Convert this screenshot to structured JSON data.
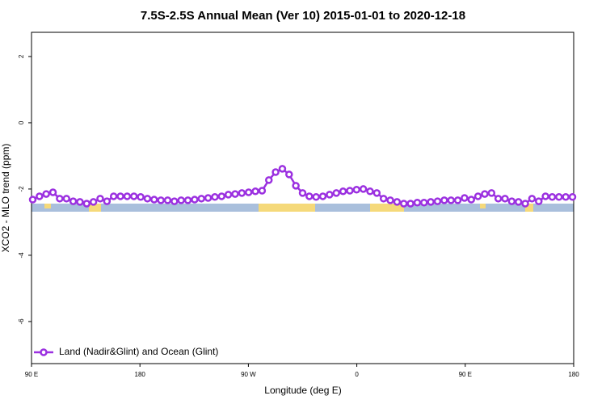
{
  "chart_data": {
    "type": "line",
    "title": "7.5S-2.5S Annual Mean (Ver 10)   2015-01-01 to 2020-12-18",
    "x_label": "Longitude (deg E)",
    "y_label": "XCO2 - MLO trend (ppm)",
    "xlim": [
      90,
      540
    ],
    "xticks": [
      {
        "value": 90,
        "label": "90 E"
      },
      180,
      {
        "value": 270,
        "label": "90 W"
      },
      {
        "value": 360,
        "label": "0"
      },
      {
        "value": 450,
        "label": "90 E"
      },
      {
        "value": 540,
        "label": "180"
      }
    ],
    "ylim": [
      -7.27,
      2.73
    ],
    "yticks": [
      -6,
      -4,
      -2,
      0,
      2
    ],
    "legend": "bottom-left",
    "x": [
      91,
      96.6,
      102.2,
      107.8,
      113.4,
      119,
      124.6,
      130.2,
      135.8,
      141.4,
      147,
      152.6,
      158.2,
      163.8,
      169.4,
      175,
      180.6,
      186.2,
      191.8,
      197.4,
      203,
      208.6,
      214.2,
      219.8,
      225.4,
      231,
      236.6,
      242.2,
      247.8,
      253.4,
      259,
      264.6,
      270.2,
      275.8,
      281.4,
      287,
      292.6,
      298.2,
      303.8,
      309.4,
      315,
      320.6,
      326.2,
      331.8,
      337.4,
      343,
      348.6,
      354.2,
      359.8,
      365.4,
      371,
      376.6,
      382.2,
      387.8,
      393.4,
      399,
      404.6,
      410.2,
      415.8,
      421.4,
      427,
      432.6,
      438.2,
      443.8,
      449.4,
      455,
      460.6,
      466.2,
      471.8,
      477.4,
      483,
      488.6,
      494.2,
      499.8,
      505.4,
      511,
      516.6,
      522.2,
      527.8,
      533.4,
      539
    ],
    "series": [
      {
        "name": "Land (Nadir&Glint) and Ocean (Glint)",
        "color": "#9b30e0",
        "values": [
          -2.32,
          -2.22,
          -2.15,
          -2.1,
          -2.29,
          -2.29,
          -2.37,
          -2.39,
          -2.44,
          -2.39,
          -2.29,
          -2.37,
          -2.22,
          -2.22,
          -2.22,
          -2.22,
          -2.24,
          -2.29,
          -2.32,
          -2.34,
          -2.34,
          -2.37,
          -2.34,
          -2.34,
          -2.32,
          -2.29,
          -2.27,
          -2.24,
          -2.22,
          -2.17,
          -2.15,
          -2.12,
          -2.1,
          -2.07,
          -2.05,
          -1.73,
          -1.49,
          -1.39,
          -1.56,
          -1.9,
          -2.12,
          -2.22,
          -2.24,
          -2.22,
          -2.17,
          -2.12,
          -2.07,
          -2.05,
          -2.02,
          -2.0,
          -2.07,
          -2.12,
          -2.29,
          -2.34,
          -2.39,
          -2.44,
          -2.44,
          -2.41,
          -2.41,
          -2.39,
          -2.37,
          -2.34,
          -2.34,
          -2.34,
          -2.27,
          -2.32,
          -2.22,
          -2.15,
          -2.12,
          -2.29,
          -2.29,
          -2.37,
          -2.39,
          -2.44,
          -2.29,
          -2.37,
          -2.22,
          -2.24,
          -2.24,
          -2.24,
          -2.24
        ]
      }
    ]
  }
}
